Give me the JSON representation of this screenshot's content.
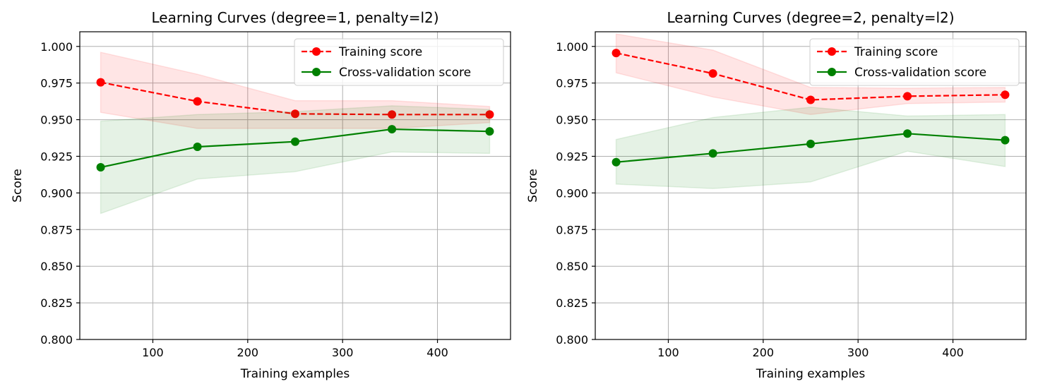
{
  "chart_data": [
    {
      "type": "line",
      "title": "Learning Curves (degree=1, penalty=l2)",
      "xlabel": "Training examples",
      "ylabel": "Score",
      "xlim": [
        23,
        477
      ],
      "ylim": [
        0.8,
        1.01
      ],
      "xticks": [
        100,
        200,
        300,
        400
      ],
      "yticks": [
        0.8,
        0.825,
        0.85,
        0.875,
        0.9,
        0.925,
        0.95,
        0.975,
        1.0
      ],
      "grid": true,
      "legend_position": "top-right",
      "x": [
        45,
        147,
        250,
        352,
        455
      ],
      "series": [
        {
          "name": "Training score",
          "color": "#ff0000",
          "linestyle": "dashed",
          "values": [
            0.9755,
            0.9625,
            0.954,
            0.9535,
            0.9535
          ],
          "band_lower": [
            0.955,
            0.944,
            0.944,
            0.944,
            0.948
          ],
          "band_upper": [
            0.996,
            0.981,
            0.963,
            0.963,
            0.959
          ]
        },
        {
          "name": "Cross-validation score",
          "color": "#008000",
          "linestyle": "solid",
          "values": [
            0.9175,
            0.9315,
            0.935,
            0.9435,
            0.942
          ],
          "band_lower": [
            0.886,
            0.9095,
            0.9145,
            0.928,
            0.927
          ],
          "band_upper": [
            0.949,
            0.9535,
            0.9555,
            0.9595,
            0.957
          ]
        }
      ]
    },
    {
      "type": "line",
      "title": "Learning Curves (degree=2, penalty=l2)",
      "xlabel": "Training examples",
      "ylabel": "Score",
      "xlim": [
        23,
        477
      ],
      "ylim": [
        0.8,
        1.01
      ],
      "xticks": [
        100,
        200,
        300,
        400
      ],
      "yticks": [
        0.8,
        0.825,
        0.85,
        0.875,
        0.9,
        0.925,
        0.95,
        0.975,
        1.0
      ],
      "grid": true,
      "legend_position": "top-right",
      "x": [
        45,
        147,
        250,
        352,
        455
      ],
      "series": [
        {
          "name": "Training score",
          "color": "#ff0000",
          "linestyle": "dashed",
          "values": [
            0.9955,
            0.9815,
            0.9635,
            0.966,
            0.967
          ],
          "band_lower": [
            0.982,
            0.9655,
            0.9535,
            0.961,
            0.962
          ],
          "band_upper": [
            1.0085,
            0.9975,
            0.972,
            0.9715,
            0.972
          ]
        },
        {
          "name": "Cross-validation score",
          "color": "#008000",
          "linestyle": "solid",
          "values": [
            0.921,
            0.927,
            0.9335,
            0.9405,
            0.936
          ],
          "band_lower": [
            0.906,
            0.903,
            0.9075,
            0.9285,
            0.918
          ],
          "band_upper": [
            0.9365,
            0.9515,
            0.9585,
            0.9525,
            0.9535
          ]
        }
      ]
    }
  ]
}
